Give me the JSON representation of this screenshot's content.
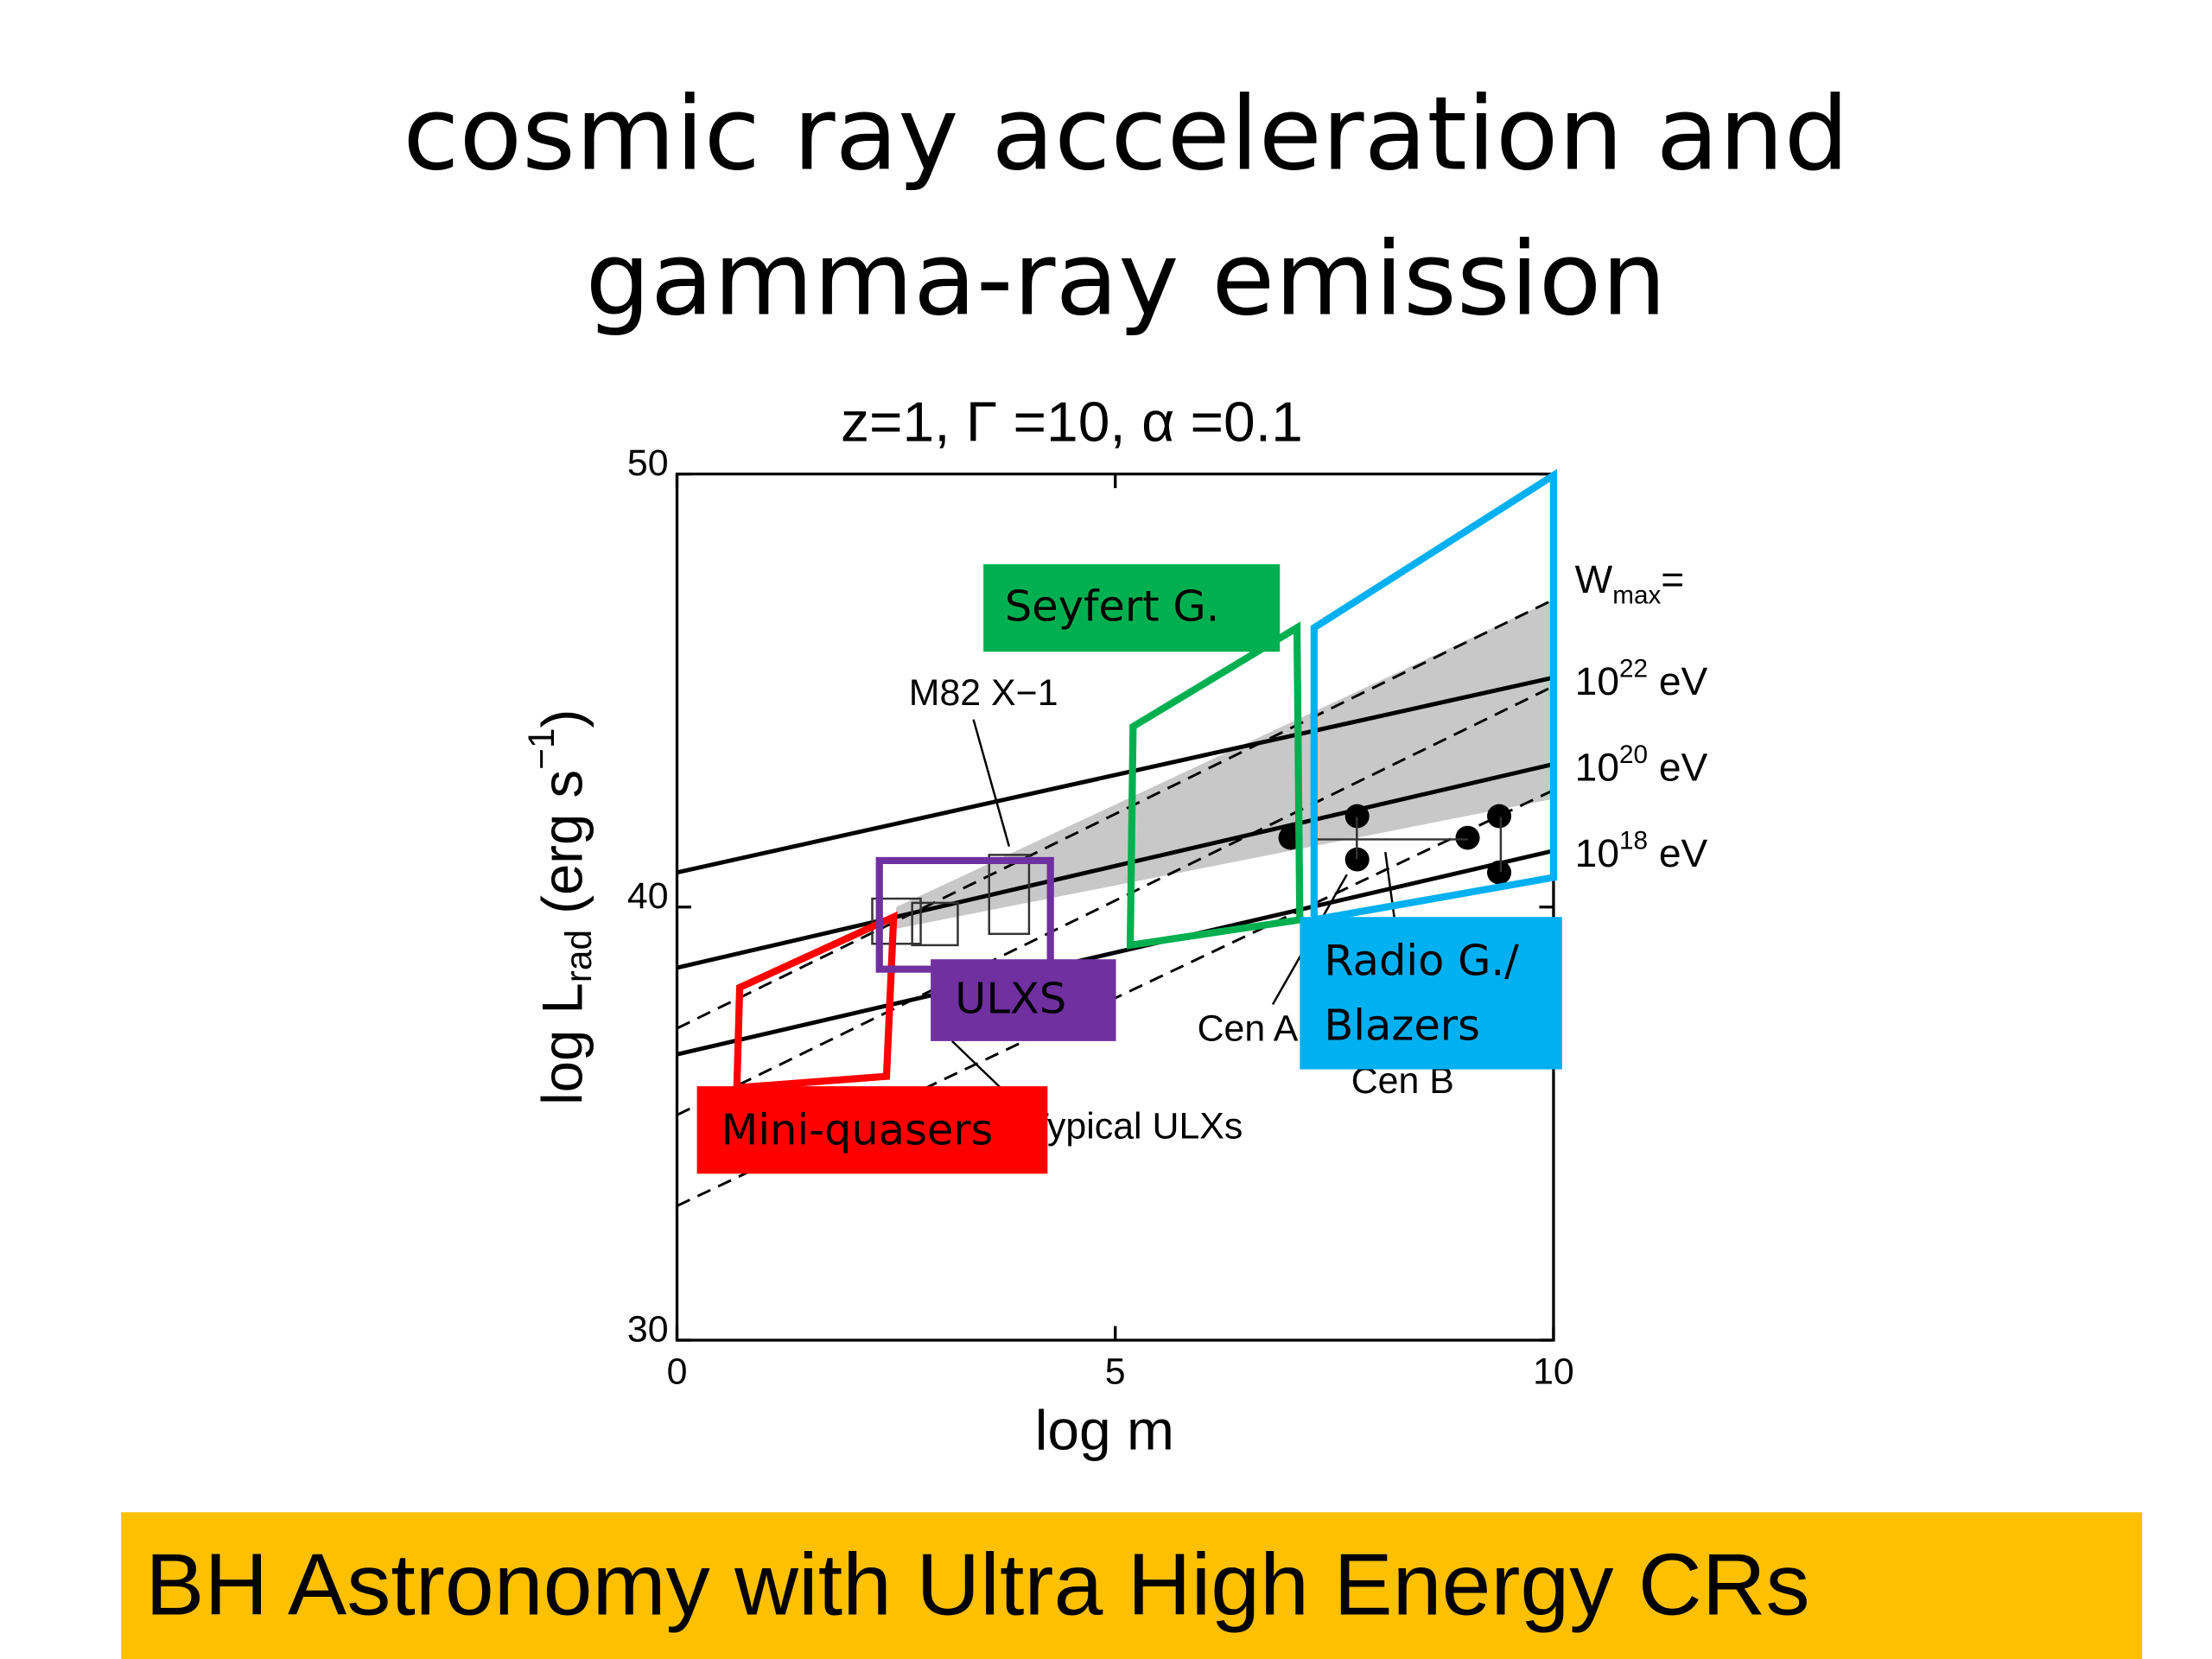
{
  "slide_title": [
    "cosmic ray acceleration and",
    "gamma-ray emission"
  ],
  "chart_data": {
    "type": "line",
    "title": "z=1, Γ =10, α =0.1",
    "x_label": "log m",
    "y_label": [
      "log L",
      "rad",
      " (erg s",
      "−1",
      ")"
    ],
    "xlim": [
      0,
      10
    ],
    "ylim": [
      30,
      50
    ],
    "xticks": [
      0,
      5,
      10
    ],
    "yticks": [
      30,
      40,
      50
    ],
    "band": {
      "color": "#c8c8c8",
      "x": [
        2.5,
        10
      ],
      "lower": [
        39.5,
        42.5
      ],
      "upper": [
        40.0,
        47.1
      ]
    },
    "series": [
      {
        "style": "solid",
        "color": "#000000",
        "x": [
          0,
          10
        ],
        "values": [
          40.8,
          45.3
        ]
      },
      {
        "style": "solid",
        "color": "#000000",
        "x": [
          0,
          10
        ],
        "values": [
          38.6,
          43.3
        ]
      },
      {
        "style": "solid",
        "color": "#000000",
        "x": [
          0,
          10
        ],
        "values": [
          36.6,
          41.3
        ]
      },
      {
        "style": "dashed",
        "color": "#000000",
        "x": [
          0,
          10
        ],
        "values": [
          37.2,
          47.1
        ]
      },
      {
        "style": "dashed",
        "color": "#000000",
        "x": [
          0,
          10
        ],
        "values": [
          35.2,
          45.1
        ]
      },
      {
        "style": "dashed",
        "color": "#000000",
        "x": [
          0,
          10
        ],
        "values": [
          33.1,
          42.7
        ]
      }
    ],
    "points": {
      "color": "#000000",
      "x": [
        7.0,
        7.76,
        7.76,
        9.02,
        9.38,
        9.38
      ],
      "values": [
        41.6,
        42.1,
        41.1,
        41.6,
        42.1,
        40.8
      ]
    },
    "right_labels": {
      "wmax": [
        "W",
        "max",
        "="
      ],
      "energies": [
        [
          "10",
          "22",
          " eV"
        ],
        [
          "10",
          "20",
          " eV"
        ],
        [
          "10",
          "18",
          " eV"
        ]
      ]
    },
    "annotations": [
      "M82 X−1",
      "Typical ULXs",
      "Cen A",
      "Cen B"
    ]
  },
  "overlays": [
    {
      "label": [
        "Seyfert   G."
      ],
      "color": "#00b050"
    },
    {
      "label": [
        "ULXS"
      ],
      "color": "#7030a0"
    },
    {
      "label": [
        "Mini-quasers"
      ],
      "color": "#ff0000"
    },
    {
      "label": [
        "Radio G./",
        "Blazers"
      ],
      "color": "#00b0f0"
    }
  ],
  "footer": "BH Astronomy with Ultra High Energy CRs"
}
